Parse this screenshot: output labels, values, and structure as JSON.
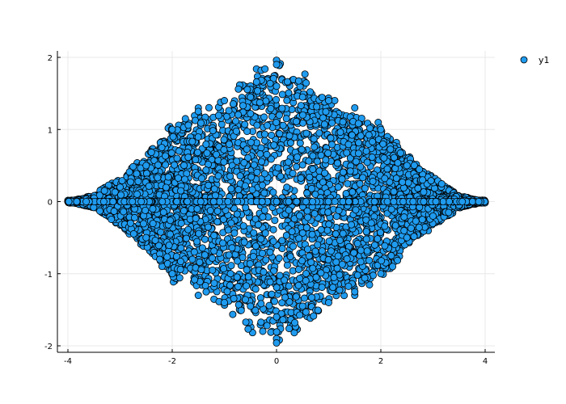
{
  "chart_data": {
    "type": "scatter",
    "title": "",
    "xlabel": "",
    "ylabel": "",
    "xlim": [
      -4.1,
      4.2
    ],
    "ylim": [
      -2.05,
      2.05
    ],
    "xticks": [
      -4,
      -2,
      0,
      2,
      4
    ],
    "yticks": [
      -2,
      -1,
      0,
      1,
      2
    ],
    "xtick_labels": [
      "-4",
      "-2",
      "0",
      "2",
      "4"
    ],
    "ytick_labels": [
      "-2",
      "-1",
      "0",
      "1",
      "2"
    ],
    "grid": true,
    "legend_position": "top-right",
    "series": [
      {
        "name": "y1",
        "color": "#1f9bef",
        "marker": "circle",
        "points": [
          [
            0,
            1.96
          ],
          [
            0,
            1.9
          ],
          [
            0,
            -1.9
          ],
          [
            0,
            -1.96
          ],
          [
            0,
            1.6
          ],
          [
            0,
            -1.6
          ],
          [
            -2,
            1
          ],
          [
            2,
            1
          ],
          [
            -2,
            -1
          ],
          [
            2,
            -1
          ],
          [
            -4,
            0
          ],
          [
            -3.95,
            0
          ],
          [
            3.95,
            0
          ],
          [
            4,
            0
          ],
          [
            -3.5,
            0.05
          ],
          [
            3.5,
            -0.05
          ],
          [
            -3,
            0.2
          ],
          [
            3,
            -0.2
          ],
          [
            -2.8,
            -0.3
          ],
          [
            2.8,
            0.3
          ],
          [
            -1.5,
            1.3
          ],
          [
            1.5,
            1.3
          ],
          [
            -1.5,
            -1.3
          ],
          [
            1.5,
            -1.3
          ],
          [
            -1.5,
            1.25
          ],
          [
            1.5,
            -1.25
          ],
          [
            -0.5,
            1.45
          ],
          [
            0.5,
            1.45
          ],
          [
            -0.5,
            -1.45
          ],
          [
            0.5,
            -1.45
          ],
          [
            -1,
            1.4
          ],
          [
            1,
            1.4
          ],
          [
            -1,
            -1.4
          ],
          [
            1,
            -1.4
          ],
          [
            -2.5,
            0.5
          ],
          [
            2.5,
            0.5
          ],
          [
            -2.5,
            -0.5
          ],
          [
            2.5,
            -0.5
          ],
          [
            -3.3,
            0.15
          ],
          [
            3.3,
            -0.15
          ],
          [
            -2.2,
            0.75
          ],
          [
            2.2,
            -0.75
          ]
        ]
      }
    ]
  }
}
